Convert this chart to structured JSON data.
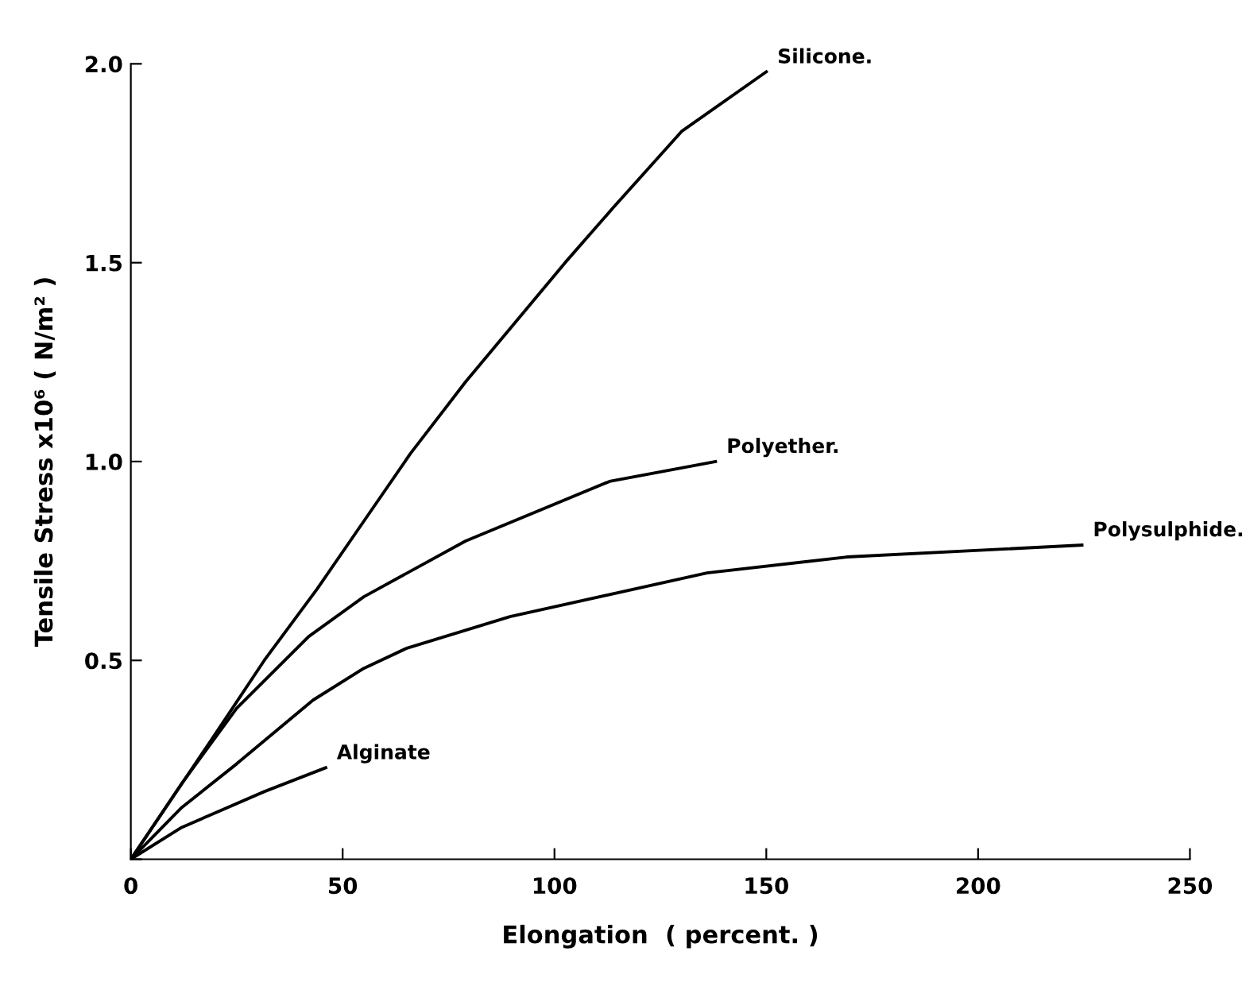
{
  "chart_data": {
    "type": "line",
    "xlabel": "Elongation  ( percent. )",
    "ylabel": "Tensile Stress x10⁶ ( N/m² )",
    "series": [
      {
        "name": "Silicone.",
        "color": "#000000",
        "x": [
          0,
          19,
          31.5,
          44,
          55,
          66,
          79,
          102.5,
          114,
          130,
          150
        ],
        "values": [
          0,
          0.3,
          0.5,
          0.68,
          0.85,
          1.02,
          1.2,
          1.5,
          1.64,
          1.83,
          1.98
        ]
      },
      {
        "name": "Polyether.",
        "color": "#000000",
        "x": [
          0,
          12,
          25,
          42,
          55,
          79,
          113,
          138
        ],
        "values": [
          0,
          0.19,
          0.38,
          0.56,
          0.66,
          0.8,
          0.95,
          1.0
        ]
      },
      {
        "name": "Polysulphide.",
        "color": "#000000",
        "x": [
          0,
          12,
          25,
          43,
          55,
          65,
          89.5,
          136,
          169,
          224.5
        ],
        "values": [
          0,
          0.13,
          0.24,
          0.4,
          0.48,
          0.53,
          0.61,
          0.72,
          0.76,
          0.79
        ]
      },
      {
        "name": "Alginate",
        "color": "#000000",
        "x": [
          0,
          12,
          31.5,
          46
        ],
        "values": [
          0,
          0.08,
          0.17,
          0.23
        ]
      }
    ],
    "xlim": [
      0,
      250
    ],
    "ylim": [
      0,
      2.0
    ],
    "xticks": [
      0,
      50,
      100,
      150,
      200,
      250
    ],
    "yticks": [
      {
        "value": 0,
        "label": null
      },
      0.5,
      {
        "value": 1.0,
        "label": "1.0"
      },
      1.5,
      {
        "value": 2.0,
        "label": "2.0"
      }
    ],
    "grid": false,
    "legend": false,
    "marker": "none",
    "line_style": "solid"
  }
}
